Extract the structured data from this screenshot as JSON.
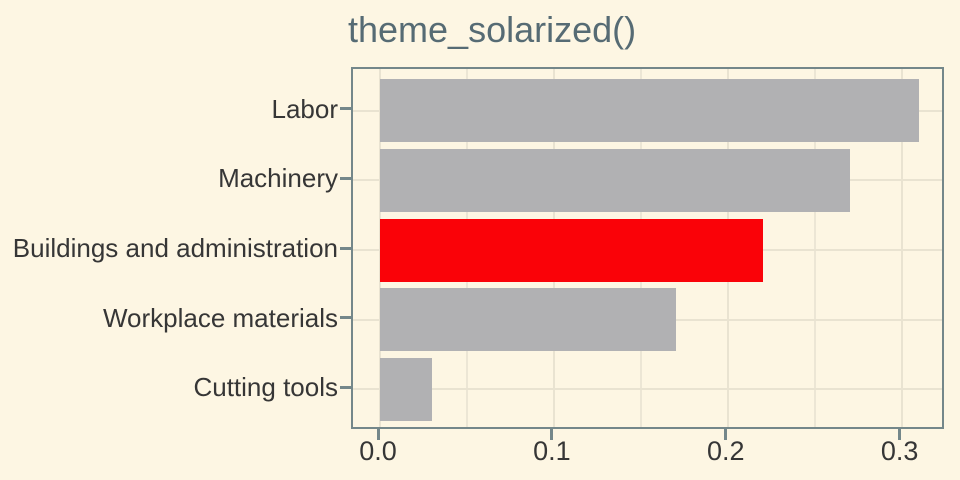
{
  "chart_data": {
    "type": "bar",
    "orientation": "horizontal",
    "title": "theme_solarized()",
    "categories": [
      "Labor",
      "Machinery",
      "Buildings and administration",
      "Workplace materials",
      "Cutting tools"
    ],
    "values": [
      0.31,
      0.27,
      0.22,
      0.17,
      0.03
    ],
    "highlight_category": "Buildings and administration",
    "highlight_index": 2,
    "x_tick_labels": [
      "0.0",
      "0.1",
      "0.2",
      "0.3"
    ],
    "x_tick_values": [
      0.0,
      0.1,
      0.2,
      0.3
    ],
    "x_minor_values": [
      0.05,
      0.15,
      0.25
    ],
    "xlim": [
      -0.0155,
      0.3255
    ],
    "xlabel": "",
    "ylabel": "",
    "grid": true,
    "legend": "none",
    "colors": {
      "background": "#fdf6e3",
      "gridline_major": "#e9e3d1",
      "gridline_minor": "#ece6d5",
      "panel_border": "#74878a",
      "tick": "#74878a",
      "bar_default": "#b1b1b3",
      "bar_highlight": "#fa0208",
      "title_text": "#566b74",
      "axis_text": "#363636"
    }
  }
}
